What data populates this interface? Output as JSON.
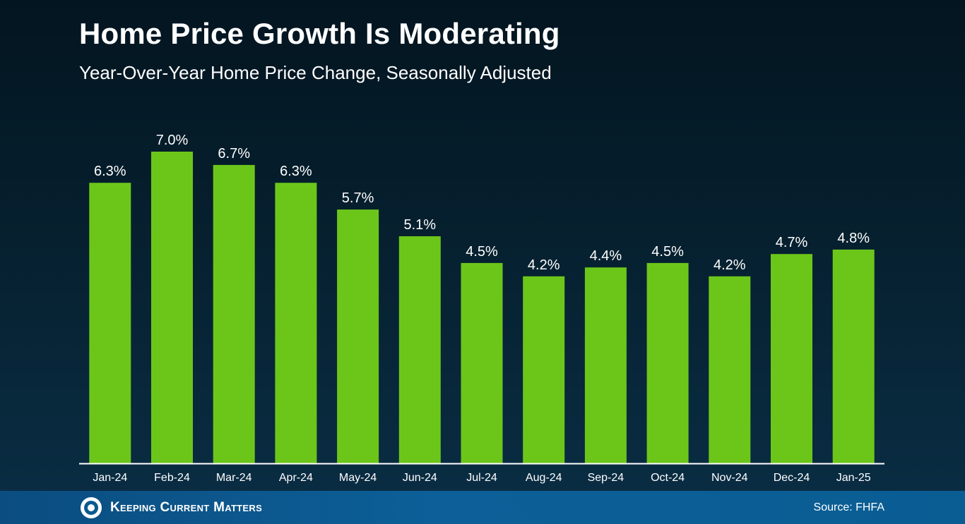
{
  "header": {
    "title": "Home Price Growth Is Moderating",
    "subtitle": "Year-Over-Year Home Price Change, Seasonally Adjusted"
  },
  "footer": {
    "logo_text": "Keeping Current Matters",
    "source": "Source: FHFA"
  },
  "colors": {
    "bar": "#6cc61a",
    "axis": "#ffffff",
    "text": "#ffffff"
  },
  "chart_data": {
    "type": "bar",
    "title": "Home Price Growth Is Moderating",
    "subtitle": "Year-Over-Year Home Price Change, Seasonally Adjusted",
    "categories": [
      "Jan-24",
      "Feb-24",
      "Mar-24",
      "Apr-24",
      "May-24",
      "Jun-24",
      "Jul-24",
      "Aug-24",
      "Sep-24",
      "Oct-24",
      "Nov-24",
      "Dec-24",
      "Jan-25"
    ],
    "values": [
      6.3,
      7.0,
      6.7,
      6.3,
      5.7,
      5.1,
      4.5,
      4.2,
      4.4,
      4.5,
      4.2,
      4.7,
      4.8
    ],
    "data_labels": [
      "6.3%",
      "7.0%",
      "6.7%",
      "6.3%",
      "5.7%",
      "5.1%",
      "4.5%",
      "4.2%",
      "4.4%",
      "4.5%",
      "4.2%",
      "4.7%",
      "4.8%"
    ],
    "ylim": [
      0,
      7.0
    ],
    "grid": false,
    "legend": "none"
  }
}
